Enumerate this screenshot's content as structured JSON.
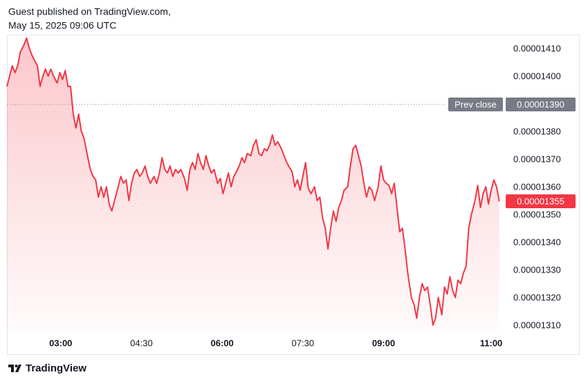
{
  "header": {
    "publisher": "Guest published on TradingView.com,",
    "timestamp": "May 15, 2025 09:06 UTC"
  },
  "footer": {
    "brand": "TradingView"
  },
  "chart_data": {
    "type": "area",
    "color": "#f23645",
    "x": [
      120,
      123,
      126,
      129,
      132,
      135,
      139,
      142,
      145,
      148,
      151,
      154,
      157,
      160,
      163,
      166,
      169,
      172,
      176,
      179,
      182,
      185,
      188,
      191,
      194,
      197,
      200,
      203,
      206,
      209,
      213,
      216,
      219,
      222,
      225,
      228,
      231,
      234,
      237,
      240,
      243,
      247,
      250,
      253,
      256,
      259,
      262,
      265,
      268,
      271,
      274,
      277,
      280,
      284,
      287,
      290,
      293,
      296,
      299,
      302,
      305,
      308,
      311,
      314,
      318,
      321,
      324,
      327,
      330,
      333,
      336,
      339,
      342,
      345,
      348,
      351,
      355,
      358,
      361,
      364,
      367,
      370,
      373,
      376,
      379,
      382,
      385,
      388,
      392,
      395,
      398,
      401,
      404,
      407,
      410,
      413,
      416,
      419,
      422,
      426,
      429,
      432,
      435,
      438,
      441,
      444,
      447,
      450,
      453,
      456,
      459,
      463,
      466,
      469,
      472,
      475,
      478,
      481,
      484,
      487,
      490,
      493,
      496,
      500,
      503,
      506,
      509,
      512,
      515,
      518,
      521,
      524,
      527,
      530,
      534,
      537,
      540,
      543,
      546,
      549,
      552,
      555,
      558,
      561,
      564,
      567,
      571,
      574,
      577,
      580,
      583,
      586,
      589,
      592,
      595,
      598,
      601,
      605,
      608,
      611,
      614,
      617,
      620,
      623,
      626,
      629,
      632,
      635,
      638,
      642,
      645,
      648,
      651,
      654,
      657,
      660,
      663,
      666,
      669
    ],
    "values": [
      1.3965e-05,
      1.40025e-05,
      1.404e-05,
      1.4015e-05,
      1.404e-05,
      1.409e-05,
      1.4115e-05,
      1.414e-05,
      1.41025e-05,
      1.40775e-05,
      1.40575e-05,
      1.404e-05,
      1.3965e-05,
      1.40025e-05,
      1.40275e-05,
      1.40025e-05,
      1.40275e-05,
      1.40025e-05,
      1.39775e-05,
      1.4015e-05,
      1.399e-05,
      1.40225e-05,
      1.3965e-05,
      1.3965e-05,
      1.3865e-05,
      1.3815e-05,
      1.3865e-05,
      1.38025e-05,
      1.37775e-05,
      1.37275e-05,
      1.3665e-05,
      1.364e-05,
      1.36275e-05,
      1.3565e-05,
      1.36025e-05,
      1.3565e-05,
      1.36025e-05,
      1.354e-05,
      1.3515e-05,
      1.35525e-05,
      1.359e-05,
      1.364e-05,
      1.3615e-05,
      1.36275e-05,
      1.35525e-05,
      1.3615e-05,
      1.36525e-05,
      1.3665e-05,
      1.364e-05,
      1.36525e-05,
      1.36775e-05,
      1.364e-05,
      1.3615e-05,
      1.364e-05,
      1.3615e-05,
      1.36525e-05,
      1.37075e-05,
      1.3665e-05,
      1.36525e-05,
      1.36775e-05,
      1.364e-05,
      1.3665e-05,
      1.36525e-05,
      1.3665e-05,
      1.36325e-05,
      1.359e-05,
      1.3665e-05,
      1.369e-05,
      1.3665e-05,
      1.37225e-05,
      1.369e-05,
      1.3665e-05,
      1.3715e-05,
      1.36775e-05,
      1.36525e-05,
      1.3665e-05,
      1.3615e-05,
      1.36325e-05,
      1.35775e-05,
      1.3615e-05,
      1.36525e-05,
      1.36025e-05,
      1.364e-05,
      1.36575e-05,
      1.36775e-05,
      1.37075e-05,
      1.369e-05,
      1.37225e-05,
      1.3715e-05,
      1.37525e-05,
      1.37725e-05,
      1.37225e-05,
      1.3715e-05,
      1.374e-05,
      1.37325e-05,
      1.37525e-05,
      1.379e-05,
      1.37525e-05,
      1.3765e-05,
      1.374e-05,
      1.3715e-05,
      1.369e-05,
      1.36725e-05,
      1.36575e-05,
      1.36025e-05,
      1.36275e-05,
      1.359e-05,
      1.364e-05,
      1.369e-05,
      1.35975e-05,
      1.35775e-05,
      1.36025e-05,
      1.35525e-05,
      1.3565e-05,
      1.349e-05,
      1.34525e-05,
      1.33775e-05,
      1.34525e-05,
      1.3515e-05,
      1.34775e-05,
      1.35275e-05,
      1.35525e-05,
      1.359e-05,
      1.36025e-05,
      1.36775e-05,
      1.374e-05,
      1.37525e-05,
      1.3715e-05,
      1.36775e-05,
      1.3615e-05,
      1.3565e-05,
      1.36025e-05,
      1.359e-05,
      1.35525e-05,
      1.36025e-05,
      1.36775e-05,
      1.36275e-05,
      1.3615e-05,
      1.36075e-05,
      1.35775e-05,
      1.3615e-05,
      1.35275e-05,
      1.344e-05,
      1.34525e-05,
      1.33775e-05,
      1.329e-05,
      1.32025e-05,
      1.31775e-05,
      1.31275e-05,
      1.32025e-05,
      1.32525e-05,
      1.32275e-05,
      1.324e-05,
      1.31775e-05,
      1.31025e-05,
      1.31275e-05,
      1.32025e-05,
      1.314e-05,
      1.324e-05,
      1.3215e-05,
      1.32775e-05,
      1.32275e-05,
      1.32025e-05,
      1.3265e-05,
      1.32525e-05,
      1.329e-05,
      1.3315e-05,
      1.34525e-05,
      1.35025e-05,
      1.35525e-05,
      1.36075e-05,
      1.35275e-05,
      1.35775e-05,
      1.36025e-05,
      1.354e-05,
      1.359e-05,
      1.36275e-05,
      1.36025e-05,
      1.355e-05
    ],
    "last_value_label": "0.00001355",
    "prev_close": {
      "label": "Prev close",
      "value": 1.39e-05,
      "value_label": "0.00001390"
    },
    "xlim": [
      120,
      670
    ],
    "xticks": [
      {
        "value": 180,
        "label": "03:00"
      },
      {
        "value": 270,
        "label": "04:30"
      },
      {
        "value": 360,
        "label": "06:00"
      },
      {
        "value": 450,
        "label": "07:30"
      },
      {
        "value": 540,
        "label": "09:00"
      },
      {
        "value": 660,
        "label": "11:00"
      }
    ],
    "ylim": [
      1.30825e-05,
      1.41475e-05
    ],
    "yticks": [
      {
        "value": 1.31e-05,
        "label": "0.00001310"
      },
      {
        "value": 1.32e-05,
        "label": "0.00001320"
      },
      {
        "value": 1.33e-05,
        "label": "0.00001330"
      },
      {
        "value": 1.34e-05,
        "label": "0.00001340"
      },
      {
        "value": 1.35e-05,
        "label": "0.00001350"
      },
      {
        "value": 1.36e-05,
        "label": "0.00001360"
      },
      {
        "value": 1.37e-05,
        "label": "0.00001370"
      },
      {
        "value": 1.38e-05,
        "label": "0.00001380"
      },
      {
        "value": 1.39e-05,
        "label": "0.00001390"
      },
      {
        "value": 1.4e-05,
        "label": "0.00001400"
      },
      {
        "value": 1.41e-05,
        "label": "0.00001410"
      }
    ],
    "grid": false
  }
}
